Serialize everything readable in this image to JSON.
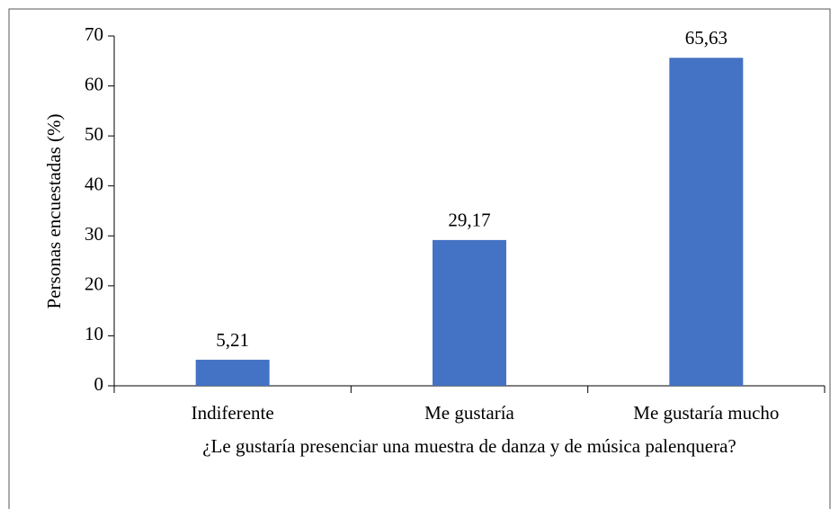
{
  "chart_data": {
    "type": "bar",
    "y_label": "Personas encuestadas (%)",
    "x_label": "¿Le gustaría presenciar una muestra de danza y de música palenquera?",
    "categories": [
      "Indiferente",
      "Me gustaría",
      "Me gustaría mucho"
    ],
    "values": [
      5.21,
      29.17,
      65.63
    ],
    "value_labels": [
      "5,21",
      "29,17",
      "65,63"
    ],
    "color": "#4472c4",
    "ylim": [
      0,
      70
    ],
    "yticks": [
      0,
      10,
      20,
      30,
      40,
      50,
      60,
      70
    ],
    "grid": false
  }
}
